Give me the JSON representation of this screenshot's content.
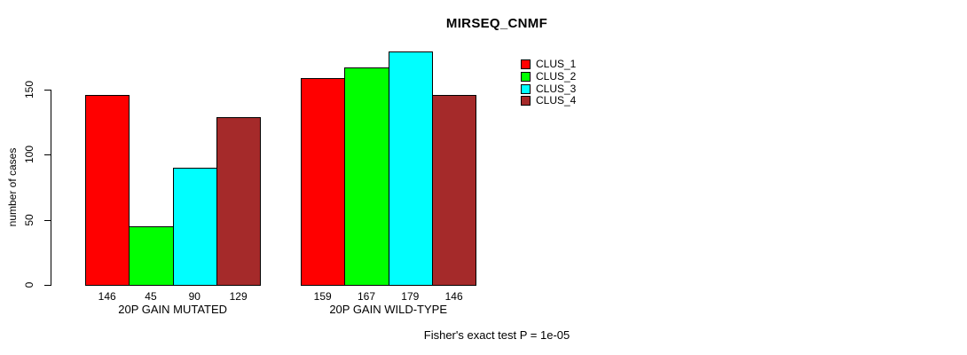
{
  "chart_data": {
    "type": "bar",
    "title": "MIRSEQ_CNMF",
    "ylabel": "number of cases",
    "xlabel": "",
    "categories": [
      "20P GAIN MUTATED",
      "20P GAIN WILD-TYPE"
    ],
    "series": [
      {
        "name": "CLUS_1",
        "color": "#ff0000",
        "values": [
          146,
          159
        ]
      },
      {
        "name": "CLUS_2",
        "color": "#00ff00",
        "values": [
          45,
          167
        ]
      },
      {
        "name": "CLUS_3",
        "color": "#00ffff",
        "values": [
          90,
          179
        ]
      },
      {
        "name": "CLUS_4",
        "color": "#a52a2a",
        "values": [
          129,
          146
        ]
      }
    ],
    "yticks": [
      0,
      50,
      100,
      150
    ],
    "ylim": [
      0,
      180
    ],
    "grid": false,
    "bar_value_labels_shown": true,
    "legend_position": "right",
    "caption": "Fisher's exact test P = 1e-05"
  }
}
